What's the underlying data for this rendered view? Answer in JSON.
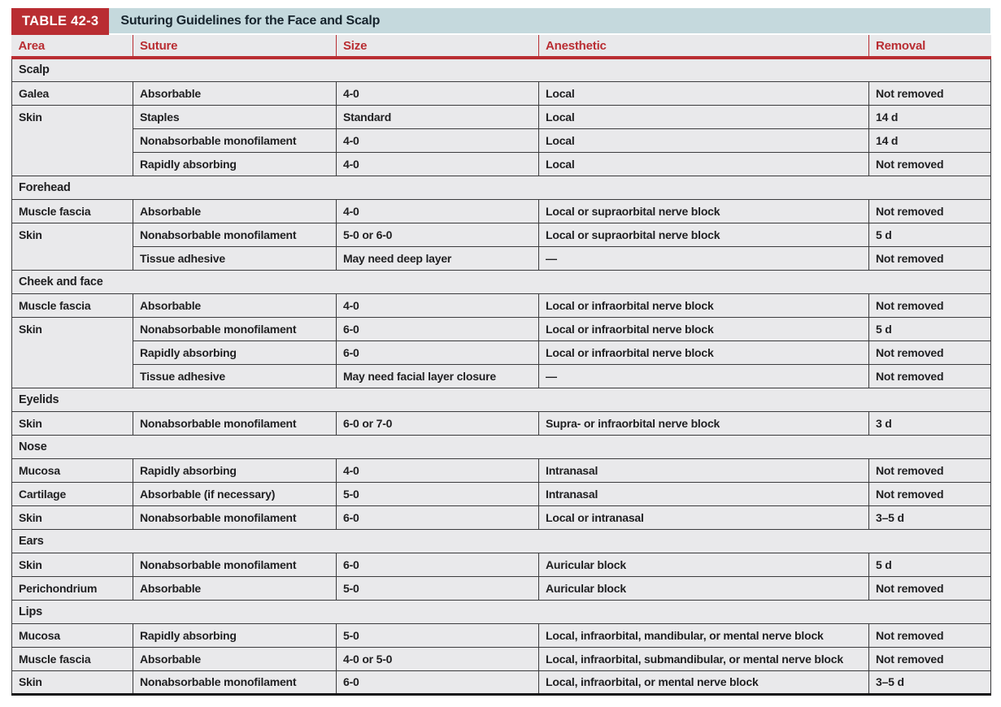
{
  "table": {
    "badge": "TABLE 42-3",
    "title": "Suturing Guidelines for the Face and Scalp",
    "columns": [
      "Area",
      "Suture",
      "Size",
      "Anesthetic",
      "Removal"
    ],
    "colors": {
      "accent_red": "#b92d32",
      "title_bar_blue": "#c5d9dd",
      "row_gray": "#e9e9eb"
    },
    "sections": [
      {
        "name": "Scalp",
        "rows": [
          {
            "area": "Galea",
            "area_rowspan": 1,
            "suture": "Absorbable",
            "size": "4-0",
            "anesthetic": "Local",
            "removal": "Not removed"
          },
          {
            "area": "Skin",
            "area_rowspan": 3,
            "suture": "Staples",
            "size": "Standard",
            "anesthetic": "Local",
            "removal": "14 d"
          },
          {
            "suture": "Nonabsorbable monofilament",
            "size": "4-0",
            "anesthetic": "Local",
            "removal": "14 d"
          },
          {
            "suture": "Rapidly absorbing",
            "size": "4-0",
            "anesthetic": "Local",
            "removal": "Not removed"
          }
        ]
      },
      {
        "name": "Forehead",
        "rows": [
          {
            "area": "Muscle fascia",
            "area_rowspan": 1,
            "suture": "Absorbable",
            "size": "4-0",
            "anesthetic": "Local or supraorbital nerve block",
            "removal": "Not removed"
          },
          {
            "area": "Skin",
            "area_rowspan": 2,
            "suture": "Nonabsorbable monofilament",
            "size": "5-0 or 6-0",
            "anesthetic": "Local or supraorbital nerve block",
            "removal": "5 d"
          },
          {
            "suture": "Tissue adhesive",
            "size": "May need deep layer",
            "anesthetic": "—",
            "removal": "Not removed"
          }
        ]
      },
      {
        "name": "Cheek and face",
        "rows": [
          {
            "area": "Muscle fascia",
            "area_rowspan": 1,
            "suture": "Absorbable",
            "size": "4-0",
            "anesthetic": "Local or infraorbital nerve block",
            "removal": "Not removed"
          },
          {
            "area": "Skin",
            "area_rowspan": 3,
            "suture": "Nonabsorbable monofilament",
            "size": "6-0",
            "anesthetic": "Local or infraorbital nerve block",
            "removal": "5 d"
          },
          {
            "suture": "Rapidly absorbing",
            "size": "6-0",
            "anesthetic": "Local or infraorbital nerve block",
            "removal": "Not removed"
          },
          {
            "suture": "Tissue adhesive",
            "size": "May need facial layer closure",
            "anesthetic": "—",
            "removal": "Not removed"
          }
        ]
      },
      {
        "name": "Eyelids",
        "rows": [
          {
            "area": "Skin",
            "area_rowspan": 1,
            "suture": "Nonabsorbable monofilament",
            "size": "6-0 or 7-0",
            "anesthetic": "Supra- or infraorbital nerve block",
            "removal": "3 d"
          }
        ]
      },
      {
        "name": "Nose",
        "rows": [
          {
            "area": "Mucosa",
            "area_rowspan": 1,
            "suture": "Rapidly absorbing",
            "size": "4-0",
            "anesthetic": "Intranasal",
            "removal": "Not removed"
          },
          {
            "area": "Cartilage",
            "area_rowspan": 1,
            "suture": "Absorbable (if necessary)",
            "size": "5-0",
            "anesthetic": "Intranasal",
            "removal": "Not removed"
          },
          {
            "area": "Skin",
            "area_rowspan": 1,
            "suture": "Nonabsorbable monofilament",
            "size": "6-0",
            "anesthetic": "Local or intranasal",
            "removal": "3–5 d"
          }
        ]
      },
      {
        "name": "Ears",
        "rows": [
          {
            "area": "Skin",
            "area_rowspan": 1,
            "suture": "Nonabsorbable monofilament",
            "size": "6-0",
            "anesthetic": "Auricular block",
            "removal": "5 d"
          },
          {
            "area": "Perichondrium",
            "area_rowspan": 1,
            "suture": "Absorbable",
            "size": "5-0",
            "anesthetic": "Auricular block",
            "removal": "Not removed"
          }
        ]
      },
      {
        "name": "Lips",
        "rows": [
          {
            "area": "Mucosa",
            "area_rowspan": 1,
            "suture": "Rapidly absorbing",
            "size": "5-0",
            "anesthetic": "Local, infraorbital, mandibular, or mental nerve block",
            "removal": "Not removed"
          },
          {
            "area": "Muscle fascia",
            "area_rowspan": 1,
            "suture": "Absorbable",
            "size": "4-0 or 5-0",
            "anesthetic": "Local, infraorbital, submandibular, or mental nerve block",
            "removal": "Not removed"
          },
          {
            "area": "Skin",
            "area_rowspan": 1,
            "suture": "Nonabsorbable monofilament",
            "size": "6-0",
            "anesthetic": "Local, infraorbital, or mental nerve block",
            "removal": "3–5 d"
          }
        ]
      }
    ]
  }
}
